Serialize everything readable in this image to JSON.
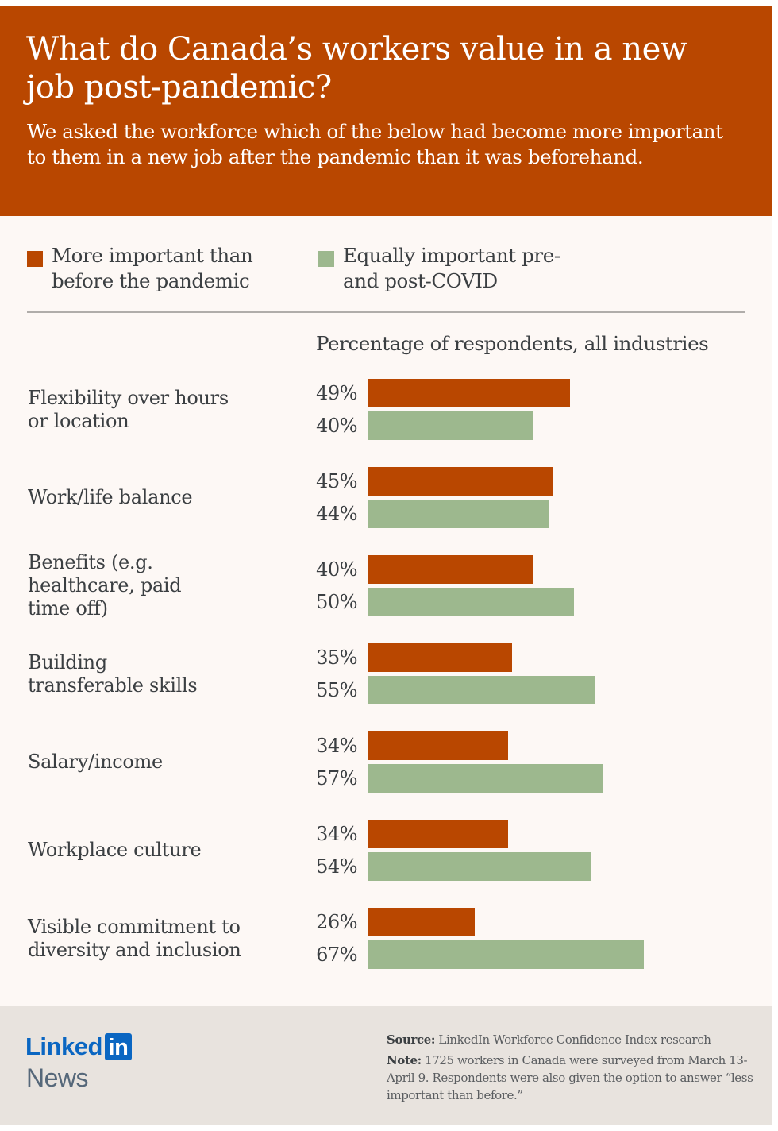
{
  "header": {
    "title": "What do Canada’s workers value in a new job post-pandemic?",
    "subtitle": "We asked the workforce which of the below had become more important to them in a new job after the pandemic than it was beforehand."
  },
  "colors": {
    "header_bg": "#b94700",
    "more_important": "#b94700",
    "equally_important": "#9db88e",
    "body_bg": "#fdf8f5",
    "footer_bg": "#e8e3de",
    "linkedin_blue": "#0a66c2"
  },
  "chart_data": {
    "type": "bar",
    "orientation": "horizontal",
    "title": "What do Canada’s workers value in a new job post-pandemic?",
    "xlabel": "Percentage of respondents, all industries",
    "ylabel": "",
    "xlim": [
      0,
      100
    ],
    "grid": false,
    "legend_position": "top-left",
    "categories": [
      "Flexibility over hours or location",
      "Work/life balance",
      "Benefits (e.g. healthcare, paid time off)",
      "Building transferable skills",
      "Salary/income",
      "Workplace culture",
      "Visible commitment to diversity and inclusion"
    ],
    "series": [
      {
        "name": "More important than before the pandemic",
        "color": "#b94700",
        "values": [
          49,
          45,
          40,
          35,
          34,
          34,
          26
        ]
      },
      {
        "name": "Equally important pre- and post-COVID",
        "color": "#9db88e",
        "values": [
          40,
          44,
          50,
          55,
          57,
          54,
          67
        ]
      }
    ],
    "value_suffix": "%"
  },
  "legend": {
    "items": [
      {
        "label": "More important than before the pandemic"
      },
      {
        "label": "Equally important pre- and post-COVID"
      }
    ]
  },
  "footer": {
    "logo_text": "Linked",
    "logo_badge": "in",
    "logo_sub": "News",
    "source_label": "Source:",
    "source_text": " LinkedIn Workforce Confidence Index research",
    "note_label": "Note:",
    "note_text": " 1725 workers in Canada were surveyed from March 13-April 9. Respondents were also given the option to answer “less important than before.”"
  }
}
